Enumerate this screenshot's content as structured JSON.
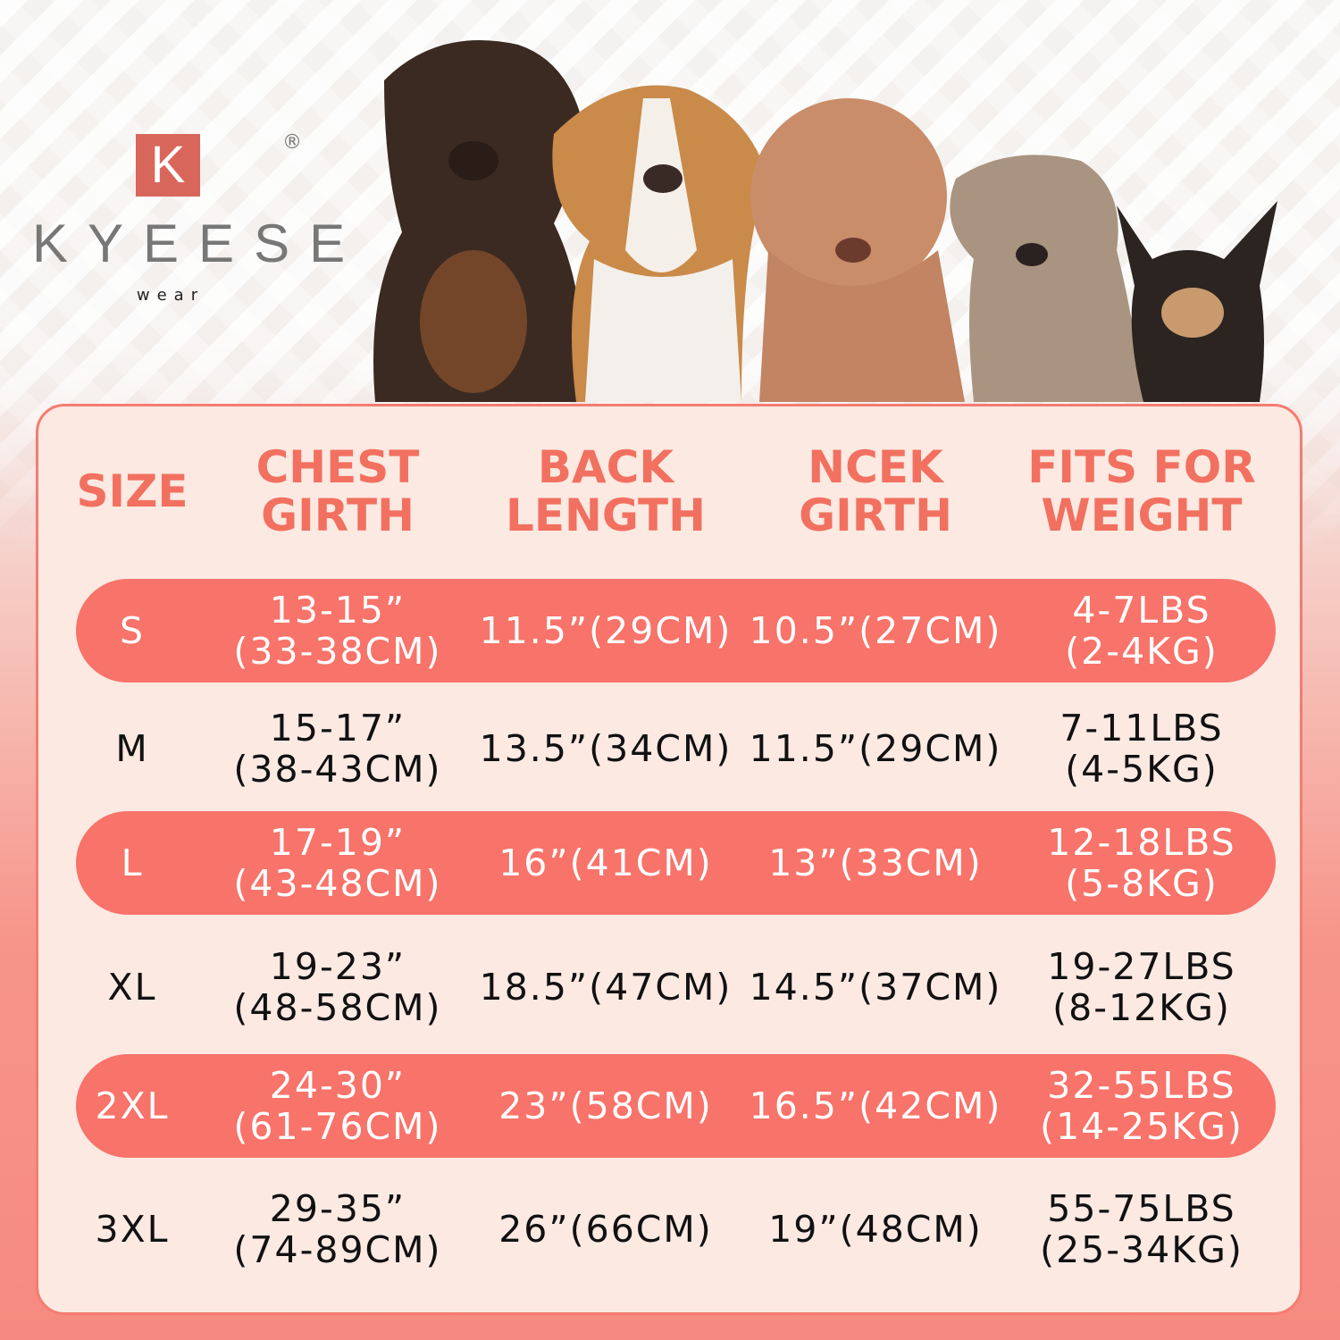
{
  "brand": {
    "mark": "K",
    "name": "KYEESE",
    "sub": "wear",
    "registered": "®"
  },
  "colors": {
    "accent": "#f8736a",
    "header_text": "#f2705f",
    "panel": "#fbe9e2"
  },
  "headers": [
    {
      "line1": "SIZE",
      "line2": ""
    },
    {
      "line1": "CHEST",
      "line2": "GIRTH"
    },
    {
      "line1": "BACK",
      "line2": "LENGTH"
    },
    {
      "line1": "NCEK",
      "line2": "GIRTH"
    },
    {
      "line1": "FITS FOR",
      "line2": "WEIGHT"
    }
  ],
  "rows": [
    {
      "size": "S",
      "chest": [
        "13-15”",
        "(33-38CM)"
      ],
      "back": "11.5”(29CM)",
      "neck": "10.5”(27CM)",
      "weight": [
        "4-7LBS",
        "(2-4KG)"
      ],
      "highlight": true
    },
    {
      "size": "M",
      "chest": [
        "15-17”",
        "(38-43CM)"
      ],
      "back": "13.5”(34CM)",
      "neck": "11.5”(29CM)",
      "weight": [
        "7-11LBS",
        "(4-5KG)"
      ],
      "highlight": false
    },
    {
      "size": "L",
      "chest": [
        "17-19”",
        "(43-48CM)"
      ],
      "back": "16”(41CM)",
      "neck": "13”(33CM)",
      "weight": [
        "12-18LBS",
        "(5-8KG)"
      ],
      "highlight": true
    },
    {
      "size": "XL",
      "chest": [
        "19-23”",
        "(48-58CM)"
      ],
      "back": "18.5”(47CM)",
      "neck": "14.5”(37CM)",
      "weight": [
        "19-27LBS",
        "(8-12KG)"
      ],
      "highlight": false
    },
    {
      "size": "2XL",
      "chest": [
        "24-30”",
        "(61-76CM)"
      ],
      "back": "23”(58CM)",
      "neck": "16.5”(42CM)",
      "weight": [
        "32-55LBS",
        "(14-25KG)"
      ],
      "highlight": true
    },
    {
      "size": "3XL",
      "chest": [
        "29-35”",
        "(74-89CM)"
      ],
      "back": "26”(66CM)",
      "neck": "19”(48CM)",
      "weight": [
        "55-75LBS",
        "(25-34KG)"
      ],
      "highlight": false
    }
  ]
}
